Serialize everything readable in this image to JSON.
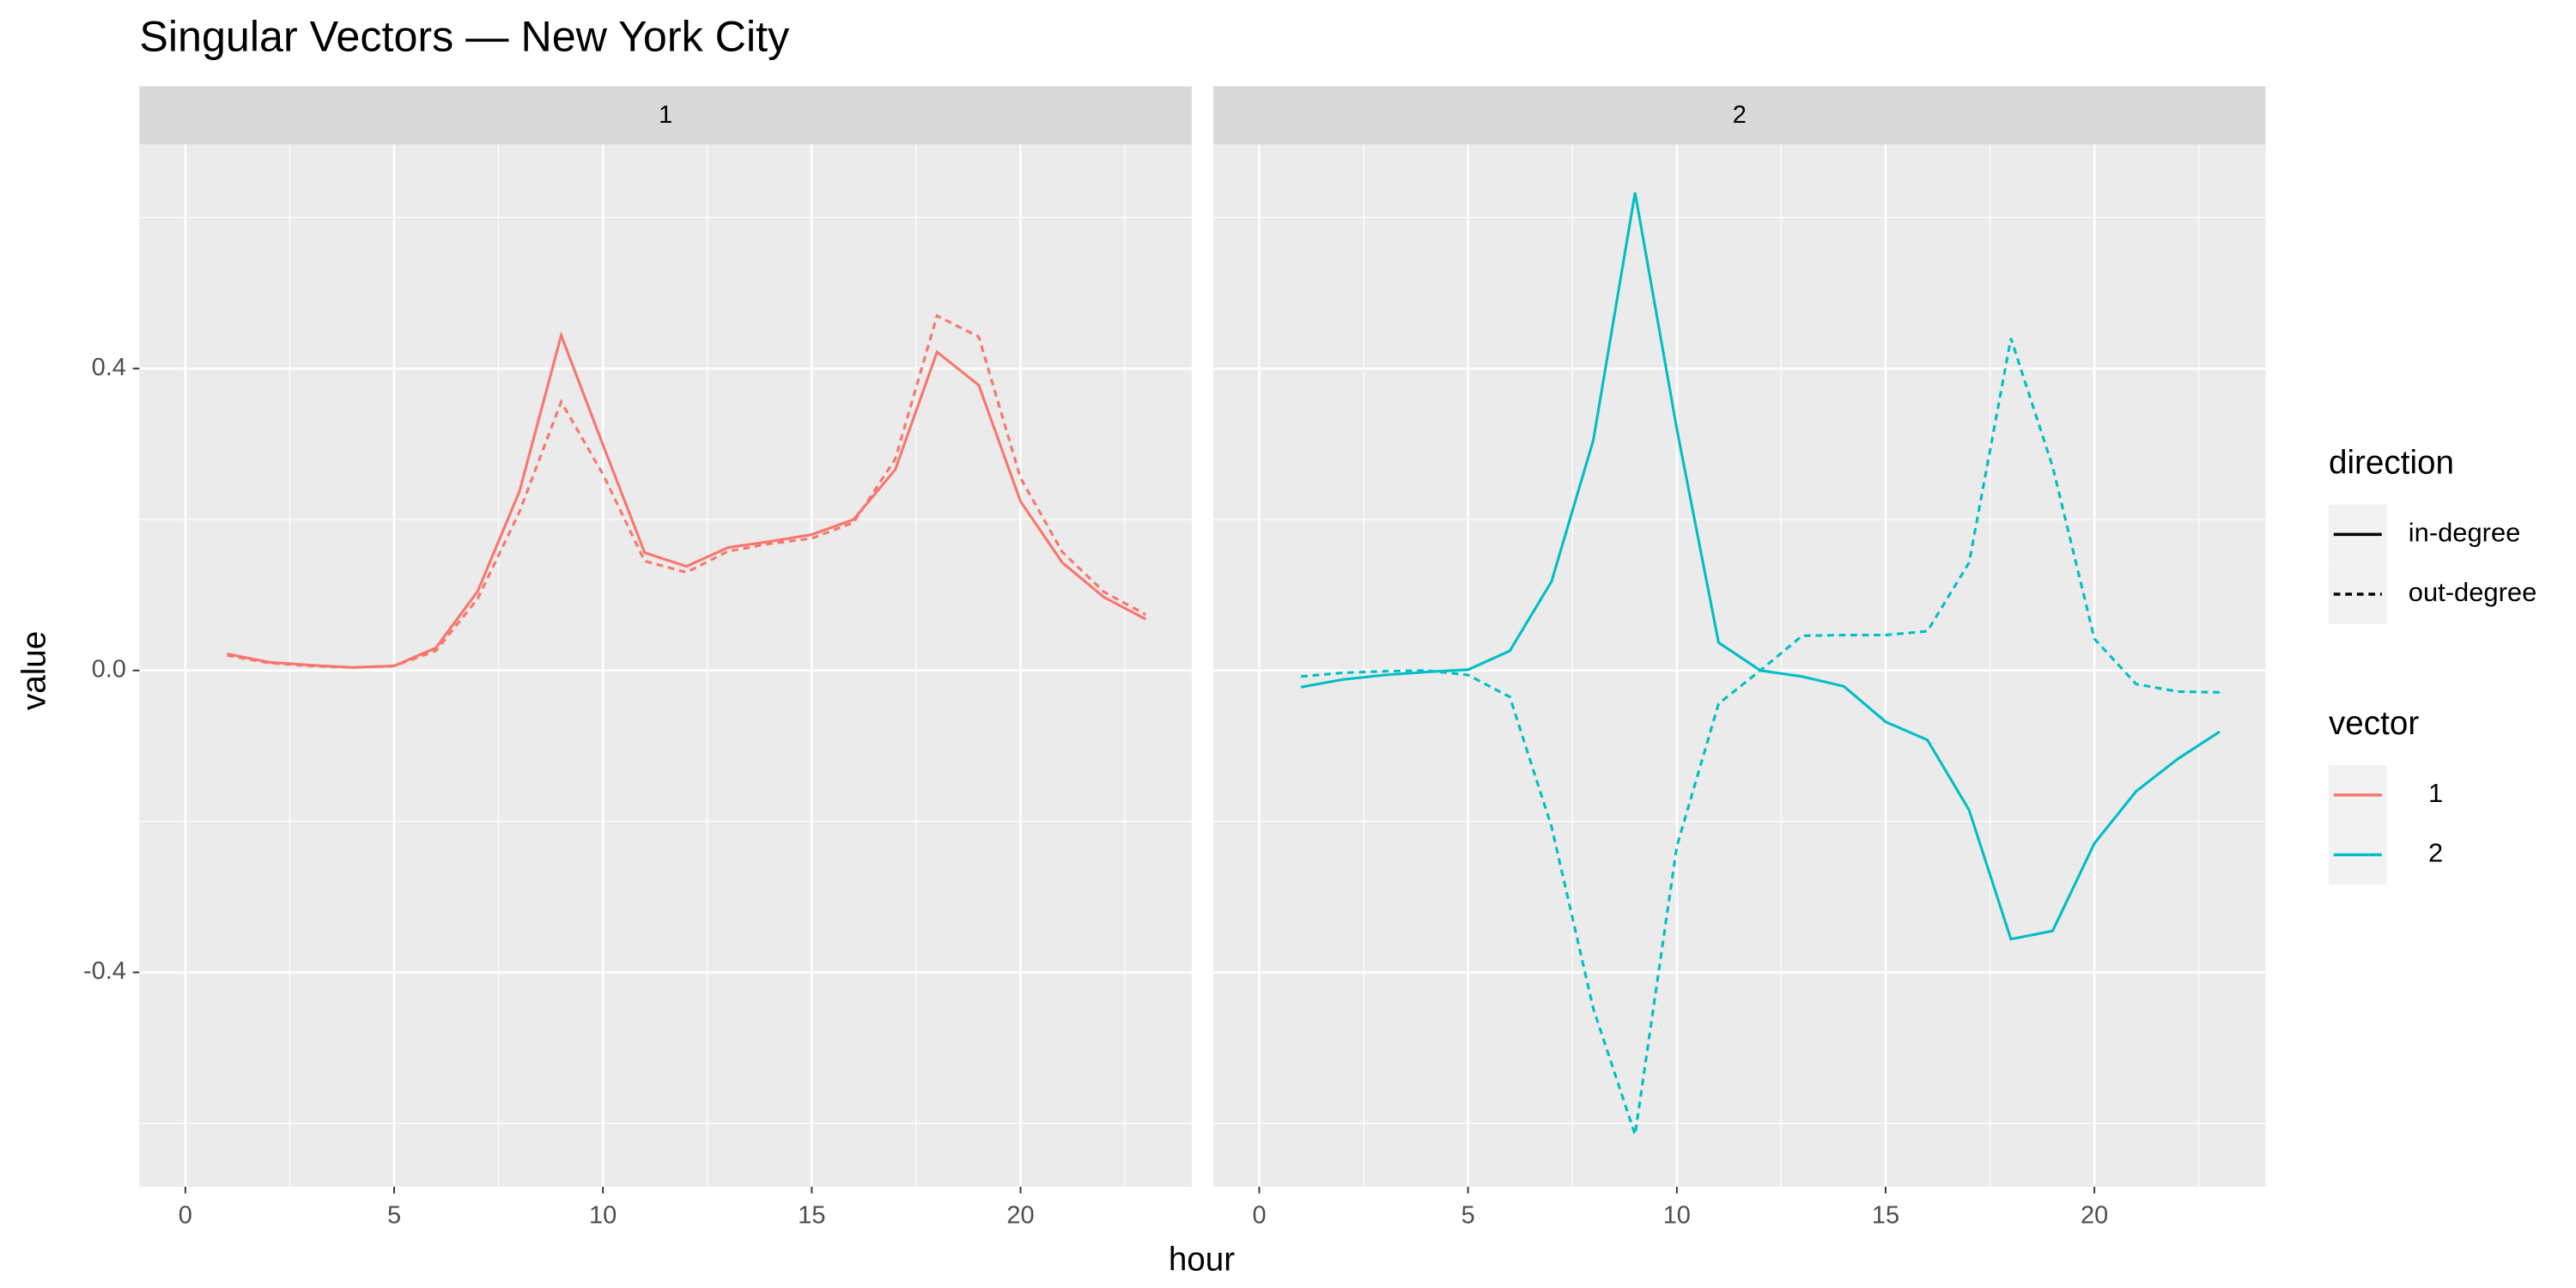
{
  "figure": {
    "title": "Singular Vectors — New York City",
    "x_label": "hour",
    "y_label": "value",
    "legends": [
      {
        "title": "direction",
        "items": [
          {
            "label": "in-degree",
            "linetype": "solid"
          },
          {
            "label": "out-degree",
            "linetype": "dashed"
          }
        ]
      },
      {
        "title": "vector",
        "items": [
          {
            "label": "1",
            "color": "#F8766D"
          },
          {
            "label": "2",
            "color": "#00BFC4"
          }
        ]
      }
    ]
  },
  "chart_data": [
    {
      "type": "line",
      "facet_label": "1",
      "x": [
        1,
        2,
        3,
        4,
        5,
        6,
        7,
        8,
        9,
        10,
        11,
        12,
        13,
        14,
        15,
        16,
        17,
        18,
        19,
        20,
        21,
        22,
        23
      ],
      "series": [
        {
          "name": "in-degree",
          "values": [
            0.022,
            0.011,
            0.007,
            0.004,
            0.006,
            0.03,
            0.105,
            0.237,
            0.444,
            0.299,
            0.156,
            0.138,
            0.163,
            0.171,
            0.18,
            0.2,
            0.266,
            0.422,
            0.378,
            0.224,
            0.143,
            0.097,
            0.068
          ]
        },
        {
          "name": "out-degree",
          "values": [
            0.02,
            0.01,
            0.006,
            0.004,
            0.006,
            0.026,
            0.095,
            0.21,
            0.356,
            0.26,
            0.145,
            0.13,
            0.158,
            0.168,
            0.175,
            0.196,
            0.28,
            0.47,
            0.442,
            0.255,
            0.157,
            0.104,
            0.074
          ]
        }
      ],
      "xlim": [
        -1.1,
        24.1
      ],
      "ylim": [
        -0.684,
        0.697
      ],
      "xticks": [
        0,
        5,
        10,
        15,
        20
      ],
      "yticks": [
        -0.4,
        {
          "value": 0,
          "label": "0.0"
        },
        0.4
      ],
      "grid": true
    },
    {
      "type": "line",
      "facet_label": "2",
      "x": [
        1,
        2,
        3,
        4,
        5,
        6,
        7,
        8,
        9,
        10,
        11,
        12,
        13,
        14,
        15,
        16,
        17,
        18,
        19,
        20,
        21,
        22,
        23
      ],
      "series": [
        {
          "name": "in-degree",
          "values": [
            -0.022,
            -0.012,
            -0.006,
            -0.002,
            0.001,
            0.026,
            0.118,
            0.305,
            0.633,
            0.32,
            0.037,
            0.0,
            -0.008,
            -0.021,
            -0.068,
            -0.092,
            -0.185,
            -0.356,
            -0.345,
            -0.229,
            -0.16,
            -0.117,
            -0.081
          ]
        },
        {
          "name": "out-degree",
          "values": [
            -0.008,
            -0.003,
            -0.001,
            0.0,
            -0.006,
            -0.035,
            -0.207,
            -0.448,
            -0.615,
            -0.233,
            -0.044,
            0.0,
            0.046,
            0.047,
            0.047,
            0.052,
            0.143,
            0.44,
            0.27,
            0.042,
            -0.018,
            -0.028,
            -0.029
          ]
        }
      ],
      "xlim": [
        -1.1,
        24.1
      ],
      "ylim": [
        -0.684,
        0.697
      ],
      "xticks": [
        0,
        5,
        10,
        15,
        20
      ],
      "yticks": [
        -0.4,
        {
          "value": 0,
          "label": "0.0"
        },
        0.4
      ],
      "grid": true
    }
  ]
}
